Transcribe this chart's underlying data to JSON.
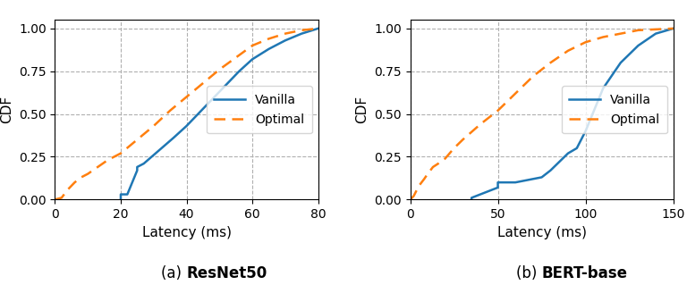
{
  "resnet": {
    "vanilla_x": [
      20,
      20,
      20,
      22,
      25,
      25,
      27,
      30,
      33,
      36,
      40,
      44,
      48,
      52,
      56,
      60,
      65,
      70,
      75,
      80
    ],
    "vanilla_y": [
      0.0,
      0.0,
      0.03,
      0.03,
      0.17,
      0.19,
      0.21,
      0.26,
      0.31,
      0.36,
      0.43,
      0.51,
      0.59,
      0.67,
      0.75,
      0.82,
      0.88,
      0.93,
      0.97,
      1.0
    ],
    "optimal_x": [
      0,
      2,
      4,
      6,
      8,
      10,
      13,
      16,
      20,
      25,
      30,
      35,
      40,
      45,
      50,
      55,
      60,
      65,
      70,
      75,
      80
    ],
    "optimal_y": [
      0.0,
      0.01,
      0.06,
      0.1,
      0.13,
      0.15,
      0.19,
      0.23,
      0.27,
      0.35,
      0.43,
      0.52,
      0.6,
      0.68,
      0.76,
      0.83,
      0.9,
      0.94,
      0.97,
      0.99,
      1.0
    ],
    "xlim": [
      0,
      80
    ],
    "xticks": [
      0,
      20,
      40,
      60,
      80
    ],
    "title_prefix": "(a) ",
    "title_bold": "ResNet50"
  },
  "bert": {
    "vanilla_x": [
      35,
      35,
      40,
      45,
      50,
      50,
      55,
      60,
      65,
      70,
      75,
      80,
      85,
      90,
      95,
      100,
      110,
      120,
      130,
      140,
      150
    ],
    "vanilla_y": [
      0.0,
      0.01,
      0.03,
      0.05,
      0.07,
      0.1,
      0.1,
      0.1,
      0.11,
      0.12,
      0.13,
      0.17,
      0.22,
      0.27,
      0.3,
      0.4,
      0.65,
      0.8,
      0.9,
      0.97,
      1.0
    ],
    "optimal_x": [
      0,
      2,
      5,
      8,
      10,
      13,
      16,
      20,
      25,
      30,
      40,
      50,
      60,
      70,
      80,
      90,
      100,
      110,
      120,
      130,
      140,
      150
    ],
    "optimal_y": [
      0.0,
      0.02,
      0.08,
      0.12,
      0.15,
      0.19,
      0.21,
      0.24,
      0.3,
      0.35,
      0.44,
      0.52,
      0.62,
      0.72,
      0.8,
      0.87,
      0.92,
      0.95,
      0.97,
      0.99,
      0.995,
      1.0
    ],
    "xlim": [
      0,
      150
    ],
    "xticks": [
      0,
      50,
      100,
      150
    ],
    "title_prefix": "(b) ",
    "title_bold": "BERT-base"
  },
  "ylim": [
    0.0,
    1.05
  ],
  "yticks": [
    0.0,
    0.25,
    0.5,
    0.75,
    1.0
  ],
  "ylabel": "CDF",
  "xlabel": "Latency (ms)",
  "vanilla_color": "#1f77b4",
  "optimal_color": "#ff7f0e",
  "vanilla_label": "Vanilla",
  "optimal_label": "Optimal",
  "grid_color": "#b0b0b0",
  "legend_loc": "center right",
  "title_fontsize": 12,
  "axis_fontsize": 11,
  "legend_fontsize": 10
}
